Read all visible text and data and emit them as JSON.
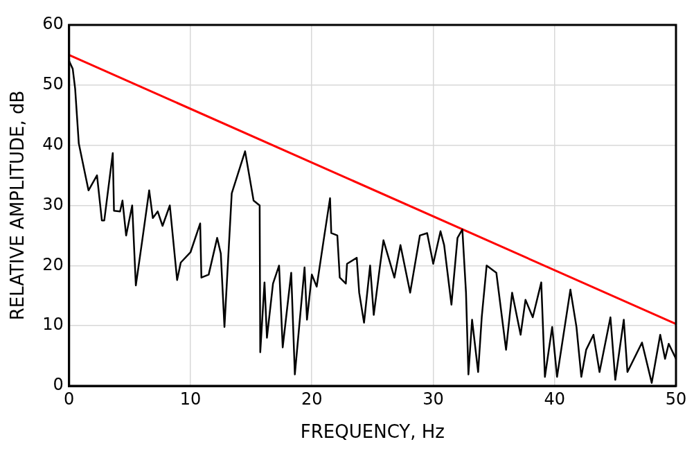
{
  "chart_data": {
    "type": "line",
    "xlabel": "FREQUENCY, Hz",
    "ylabel": "RELATIVE AMPLITUDE, dB",
    "xlim": [
      0,
      50
    ],
    "ylim": [
      0,
      60
    ],
    "xticks": [
      0,
      10,
      20,
      30,
      40,
      50
    ],
    "yticks": [
      0,
      10,
      20,
      30,
      40,
      50,
      60
    ],
    "grid": true,
    "legend": false,
    "marker": "none",
    "line_style": "solid",
    "series": [
      {
        "color": "#000000",
        "x": [
          0,
          0.3,
          0.5,
          0.8,
          1.6,
          2.3,
          2.7,
          2.9,
          3.6,
          3.7,
          4.2,
          4.4,
          4.7,
          5.2,
          5.5,
          6.0,
          6.6,
          6.9,
          7.3,
          7.7,
          8.3,
          8.9,
          9.2,
          10.0,
          10.8,
          10.9,
          11.5,
          12.2,
          12.5,
          12.8,
          13.4,
          14.5,
          15.2,
          15.7,
          15.75,
          16.1,
          16.3,
          16.8,
          17.3,
          17.6,
          18.3,
          18.6,
          19.4,
          19.6,
          20.0,
          20.4,
          21.0,
          21.5,
          21.6,
          22.1,
          22.3,
          22.8,
          22.9,
          23.7,
          23.9,
          24.3,
          24.8,
          25.1,
          25.6,
          25.9,
          26.8,
          27.3,
          28.1,
          28.9,
          29.5,
          30.0,
          30.6,
          30.9,
          31.5,
          32.0,
          32.4,
          32.7,
          32.9,
          33.2,
          33.7,
          34.0,
          34.4,
          35.2,
          36.0,
          36.5,
          37.2,
          37.6,
          38.2,
          38.9,
          39.2,
          39.8,
          40.2,
          41.3,
          41.8,
          42.2,
          42.6,
          43.2,
          43.7,
          44.6,
          45.0,
          45.7,
          46.0,
          47.2,
          48.0,
          48.7,
          49.1,
          49.4,
          50.0
        ],
        "values": [
          54,
          52.7,
          49.4,
          40.3,
          32.5,
          35,
          27.5,
          27.5,
          38.7,
          29.1,
          29,
          30.8,
          25,
          30,
          16.7,
          23.8,
          32.5,
          27.9,
          29,
          26.6,
          30,
          17.6,
          20.5,
          22.2,
          27,
          18,
          18.5,
          24.6,
          22,
          9.8,
          32,
          39,
          30.8,
          30,
          5.6,
          17.2,
          8,
          17,
          20,
          6.4,
          18.8,
          1.9,
          19.7,
          11,
          18.5,
          16.5,
          24.6,
          31.2,
          25.4,
          25,
          18,
          17,
          20.3,
          21.3,
          15.5,
          10.5,
          20,
          11.8,
          19.7,
          24.2,
          18,
          23.4,
          15.5,
          25,
          25.4,
          20.3,
          25.7,
          23.4,
          13.5,
          24.6,
          26,
          15.5,
          1.9,
          11,
          2.3,
          11.5,
          20,
          18.8,
          6,
          15.5,
          8.5,
          14.3,
          11.4,
          17.2,
          1.5,
          9.8,
          1.5,
          16,
          9.8,
          1.5,
          6,
          8.5,
          2.3,
          11.4,
          1,
          11,
          2.3,
          7.2,
          0.5,
          8.5,
          4.5,
          7,
          4.5
        ]
      },
      {
        "color": "#ff0000",
        "x": [
          0,
          50
        ],
        "values": [
          55,
          10.3
        ]
      }
    ]
  }
}
